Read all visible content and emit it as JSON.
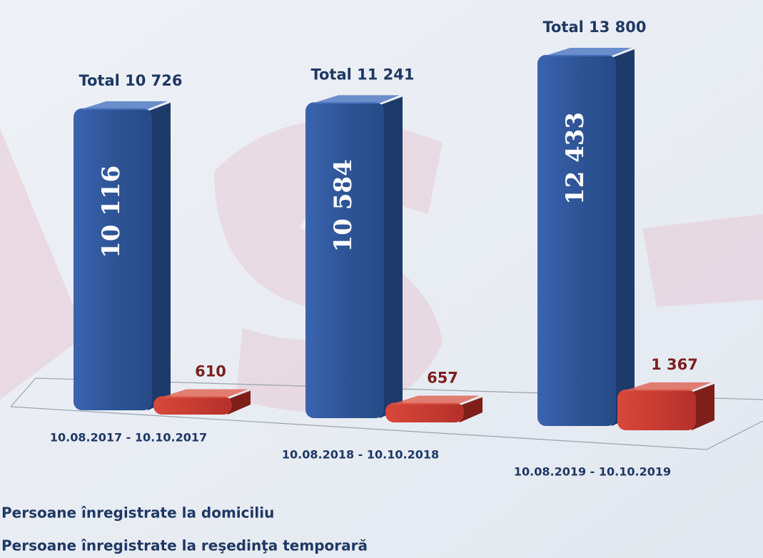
{
  "chart_data": {
    "type": "bar3d",
    "categories": [
      "10.08.2017 - 10.10.2017",
      "10.08.2018 - 10.10.2018",
      "10.08.2019 - 10.10.2019"
    ],
    "series": [
      {
        "name": "Persoane înregistrate la domiciliu",
        "color": "#2f5597",
        "values": [
          10116,
          10584,
          12433
        ],
        "value_labels": [
          "10 116",
          "10 584",
          "12 433"
        ]
      },
      {
        "name": "Persoane înregistrate la reşedinţa temporară",
        "color": "#c0392b",
        "values": [
          610,
          657,
          1367
        ],
        "value_labels": [
          "610",
          "657",
          "1 367"
        ]
      }
    ],
    "annotations": [
      "Total 10 726",
      "Total 11 241",
      "Total  13 800"
    ]
  }
}
